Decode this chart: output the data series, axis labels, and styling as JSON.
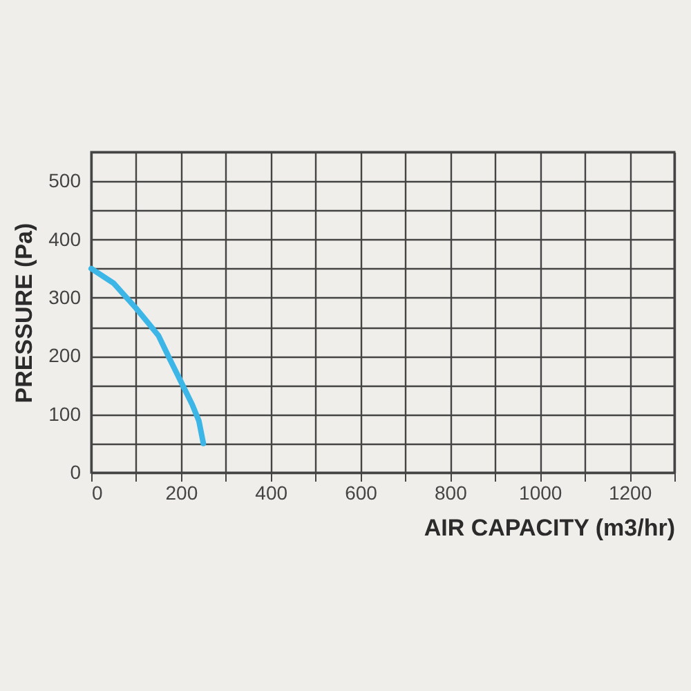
{
  "chart_data": {
    "type": "line",
    "xlabel": "AIR CAPACITY (m3/hr)",
    "ylabel": "PRESSURE (Pa)",
    "x": [
      0,
      50,
      100,
      130,
      150,
      175,
      200,
      225,
      240,
      250
    ],
    "series": [
      {
        "color": "#3bb6e6",
        "values": [
          350,
          325,
          282,
          254,
          235,
          195,
          156,
          117,
          89,
          50
        ]
      }
    ],
    "xlim": [
      0,
      1300
    ],
    "ylim": [
      0,
      550
    ],
    "xticks": [
      0,
      {
        "value": 100,
        "label": null
      },
      200,
      {
        "value": 300,
        "label": null
      },
      400,
      {
        "value": 500,
        "label": null
      },
      600,
      {
        "value": 700,
        "label": null
      },
      800,
      {
        "value": 900,
        "label": null
      },
      1000,
      {
        "value": 1100,
        "label": null
      },
      1200,
      {
        "value": 1300,
        "label": null
      }
    ],
    "yticks": [
      0,
      {
        "value": 50,
        "label": null
      },
      100,
      {
        "value": 150,
        "label": null
      },
      200,
      {
        "value": 250,
        "label": null
      },
      300,
      {
        "value": 350,
        "label": null
      },
      400,
      {
        "value": 450,
        "label": null
      },
      500,
      {
        "value": 550,
        "label": null
      }
    ],
    "grid": true,
    "marker": "none",
    "line_style": "solid"
  }
}
